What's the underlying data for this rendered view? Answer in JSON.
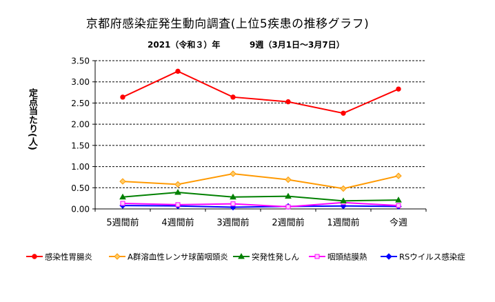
{
  "title": "京都府感染症発生動向調査(上位5疾患の推移グラフ)",
  "subtitle_left": "2021（令和３）年",
  "subtitle_right": "9週（3月1日～3月7日）",
  "chart_data": {
    "type": "line",
    "title": "京都府感染症発生動向調査(上位5疾患の推移グラフ)",
    "xlabel": "",
    "ylabel": "定点当たり(人)",
    "ylim": [
      0,
      3.5
    ],
    "yticks": [
      "0.00",
      "0.50",
      "1.00",
      "1.50",
      "2.00",
      "2.50",
      "3.00",
      "3.50"
    ],
    "categories": [
      "5週間前",
      "4週間前",
      "3週間前",
      "2週間前",
      "1週間前",
      "今週"
    ],
    "legend_position": "bottom",
    "series": [
      {
        "name": "感染性胃腸炎",
        "color": "#ff0000",
        "marker": "circle",
        "values": [
          2.64,
          3.25,
          2.64,
          2.53,
          2.26,
          2.83
        ]
      },
      {
        "name": "A群溶血性レンサ球菌咽頭炎",
        "color": "#ff9900",
        "marker": "diamond",
        "values": [
          0.65,
          0.58,
          0.83,
          0.69,
          0.48,
          0.78
        ]
      },
      {
        "name": "突発性発しん",
        "color": "#008000",
        "marker": "triangle",
        "values": [
          0.28,
          0.39,
          0.28,
          0.3,
          0.19,
          0.21
        ]
      },
      {
        "name": "咽頭結膜熱",
        "color": "#ff00ff",
        "marker": "square",
        "values": [
          0.13,
          0.1,
          0.12,
          0.05,
          0.15,
          0.08
        ]
      },
      {
        "name": "RSウイルス感染症",
        "color": "#0000ff",
        "marker": "diamond",
        "values": [
          0.08,
          0.07,
          0.04,
          0.06,
          0.07,
          0.06
        ]
      }
    ]
  }
}
